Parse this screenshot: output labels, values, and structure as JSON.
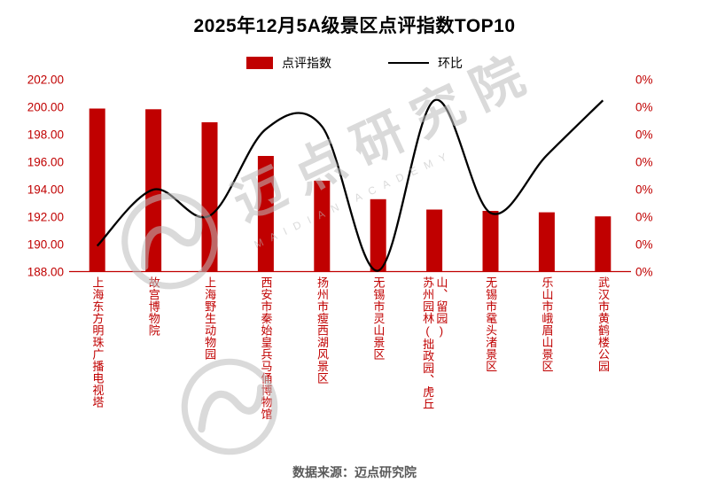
{
  "title": "2025年12月5A级景区点评指数TOP10",
  "legend": {
    "bar_label": "点评指数",
    "line_label": "环比"
  },
  "footer": "数据来源：迈点研究院",
  "watermark": {
    "text": "迈点研究院",
    "subtext": "MAIDIAN ACADEMY"
  },
  "chart_data": {
    "type": "bar+line",
    "title": "2025年12月5A级景区点评指数TOP10",
    "categories": [
      "上海东方明珠广播电视塔",
      "故宫博物院",
      "上海野生动物园",
      "西安市秦始皇兵马俑博物馆",
      "扬州市瘦西湖风景区",
      "无锡市灵山景区",
      "苏州园林(拙政园、虎丘山、留园)",
      "无锡市鼋头渚景区",
      "乐山市峨眉山景区",
      "武汉市黄鹤楼公园"
    ],
    "series": [
      {
        "name": "点评指数",
        "type": "bar",
        "color": "#C00000",
        "axis": "left",
        "values": [
          199.9,
          199.85,
          198.9,
          196.45,
          194.65,
          193.3,
          192.55,
          192.45,
          192.35,
          192.05
        ]
      },
      {
        "name": "环比",
        "type": "line",
        "color": "#000000",
        "axis": "right",
        "plotted_values_left_scale": [
          189.9,
          194.0,
          192.1,
          198.4,
          198.6,
          188.1,
          200.5,
          192.3,
          196.5,
          200.5
        ]
      }
    ],
    "left_axis": {
      "min": 188,
      "max": 202,
      "tick_labels": [
        "188.00",
        "190.00",
        "192.00",
        "194.00",
        "196.00",
        "198.00",
        "200.00",
        "202.00"
      ]
    },
    "right_axis": {
      "tick_labels": [
        "0%",
        "0%",
        "0%",
        "0%",
        "0%",
        "0%",
        "0%",
        "0%"
      ]
    },
    "grid": false,
    "legend_position": "top"
  }
}
